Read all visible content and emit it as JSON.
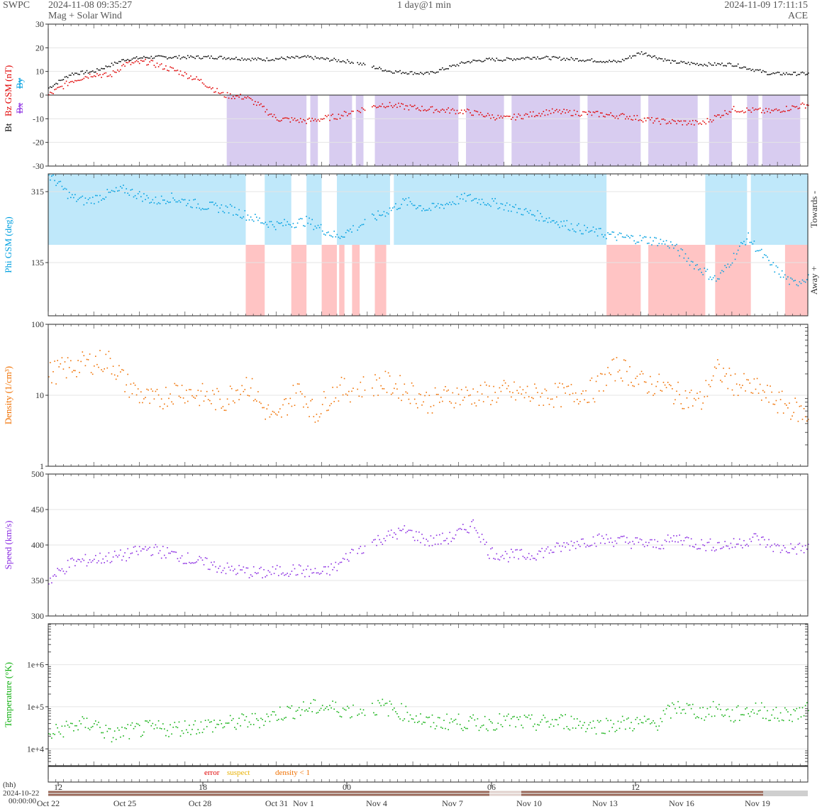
{
  "header": {
    "org": "SWPC",
    "start_time": "2024-11-08 09:35:27",
    "subtitle": "Mag + Solar Wind",
    "window": "1 day@1 min",
    "end_time": "2024-11-09 17:11:15",
    "source": "ACE"
  },
  "flags": {
    "error": "error",
    "suspect": "suspect",
    "density": "density < 1",
    "error_color": "#e00000",
    "suspect_color": "#e8b000",
    "density_color": "#f07000"
  },
  "footer": {
    "hh_label": "(hh)",
    "start_date": "2024-10-22",
    "start_clock": "00:00:00"
  },
  "hour_ticks": [
    "12",
    "18",
    "00",
    "06",
    "12"
  ],
  "date_ticks": [
    "Oct 22",
    "Oct 25",
    "Oct 28",
    "Oct 31",
    "Nov 1",
    "Nov 4",
    "Nov 7",
    "Nov 10",
    "Nov 13",
    "Nov 16",
    "Nov 19"
  ],
  "side_labels": {
    "towards": "Towards -",
    "away": "Away +"
  },
  "colors": {
    "bt": "#000000",
    "bz": "#e00000",
    "bx": "#8a2be2",
    "by": "#00a0e0",
    "neg_fill": "#d8ccf0",
    "towards_fill": "#bfe8fa",
    "away_fill": "#ffc4c4",
    "density": "#f07000",
    "speed": "#8a2be2",
    "temperature": "#10b010"
  },
  "chart_data": [
    {
      "type": "scatter",
      "ylabel_parts": [
        "Bt",
        "Bz GSM (nT)",
        "Bx",
        "By"
      ],
      "ylim": [
        -30,
        30
      ],
      "yticks": [
        "30",
        "20",
        "10",
        "0",
        "-10",
        "-20",
        "-30"
      ],
      "series": [
        {
          "name": "Bt",
          "x": [
            0,
            3,
            6,
            10,
            13,
            17,
            22,
            28,
            34,
            40,
            45,
            50,
            55,
            58,
            60,
            64,
            70,
            75,
            78,
            82,
            86,
            90,
            95,
            100
          ],
          "y": [
            3,
            9,
            10,
            15,
            16,
            16,
            16,
            15,
            16,
            14,
            10,
            9,
            14,
            15,
            15,
            16,
            15,
            14,
            18,
            14,
            13,
            13,
            9,
            9
          ]
        },
        {
          "name": "Bz GSM",
          "x": [
            0,
            3,
            6,
            8,
            10,
            13,
            17,
            20,
            23,
            26,
            28,
            30,
            34,
            38,
            40,
            44,
            50,
            55,
            60,
            66,
            72,
            76,
            80,
            86,
            90,
            95,
            100
          ],
          "y": [
            0,
            6,
            9,
            8,
            13,
            14,
            10,
            6,
            0,
            -1,
            -5,
            -10,
            -11,
            -9,
            -7,
            -4,
            -6,
            -7,
            -10,
            -7,
            -8,
            -9,
            -11,
            -12,
            -6,
            -7,
            -4
          ]
        }
      ]
    },
    {
      "type": "scatter",
      "ylabel": "Phi GSM (deg)",
      "yticks": [
        "315",
        "135"
      ],
      "series": [
        {
          "name": "Phi GSM",
          "x": [
            0,
            1,
            3,
            5,
            8,
            10,
            14,
            16,
            20,
            24,
            28,
            30,
            34,
            38,
            44,
            47,
            50,
            55,
            60,
            65,
            70,
            75,
            80,
            82,
            85,
            88,
            92,
            95,
            98,
            100
          ],
          "y": [
            355,
            340,
            300,
            290,
            310,
            320,
            290,
            300,
            280,
            270,
            240,
            230,
            240,
            200,
            260,
            290,
            270,
            300,
            280,
            250,
            220,
            200,
            190,
            180,
            130,
            90,
            200,
            130,
            80,
            100
          ]
        }
      ]
    },
    {
      "type": "scatter",
      "ylabel": "Density (1/cm³)",
      "yscale": "log",
      "ylim": [
        1,
        100
      ],
      "yticks": [
        "100",
        "10",
        "1"
      ],
      "series": [
        {
          "name": "Density",
          "x": [
            0,
            3,
            6,
            8,
            10,
            12,
            14,
            17,
            20,
            23,
            26,
            28,
            30,
            33,
            35,
            38,
            40,
            44,
            47,
            50,
            53,
            56,
            60,
            64,
            68,
            72,
            75,
            78,
            80,
            83,
            86,
            88,
            90,
            93,
            96,
            100
          ],
          "y": [
            20,
            25,
            30,
            30,
            15,
            10,
            8,
            12,
            10,
            8,
            15,
            7,
            4,
            12,
            5,
            12,
            12,
            15,
            12,
            8,
            10,
            10,
            11,
            10,
            10,
            12,
            25,
            15,
            14,
            10,
            8,
            22,
            15,
            12,
            8,
            5
          ]
        }
      ]
    },
    {
      "type": "scatter",
      "ylabel": "Speed (km/s)",
      "ylim": [
        300,
        500
      ],
      "yticks": [
        "500",
        "450",
        "400",
        "350",
        "300"
      ],
      "series": [
        {
          "name": "Speed",
          "x": [
            0,
            3,
            6,
            10,
            13,
            17,
            20,
            24,
            28,
            32,
            36,
            38,
            40,
            42,
            44,
            47,
            50,
            53,
            56,
            58,
            60,
            63,
            67,
            70,
            73,
            76,
            80,
            83,
            86,
            90,
            93,
            96,
            100
          ],
          "y": [
            350,
            375,
            380,
            385,
            395,
            385,
            375,
            365,
            360,
            365,
            360,
            370,
            390,
            400,
            410,
            420,
            405,
            410,
            430,
            390,
            385,
            385,
            395,
            405,
            408,
            405,
            400,
            410,
            400,
            400,
            410,
            395,
            395
          ]
        }
      ]
    },
    {
      "type": "scatter",
      "ylabel": "Temperature (°K)",
      "yscale": "log",
      "yticks": [
        "1e+6",
        "1e+5",
        "1e+4"
      ],
      "series": [
        {
          "name": "Temperature",
          "x": [
            0,
            3,
            6,
            8,
            10,
            13,
            16,
            20,
            24,
            28,
            32,
            36,
            38,
            40,
            44,
            47,
            50,
            53,
            56,
            60,
            64,
            68,
            72,
            76,
            80,
            83,
            86,
            88,
            90,
            93,
            96,
            100
          ],
          "y": [
            20000,
            35000,
            40000,
            20000,
            25000,
            30000,
            30000,
            35000,
            40000,
            50000,
            80000,
            100000,
            90000,
            80000,
            100000,
            70000,
            40000,
            45000,
            40000,
            45000,
            40000,
            45000,
            35000,
            40000,
            40000,
            100000,
            70000,
            90000,
            60000,
            90000,
            60000,
            80000
          ]
        }
      ]
    }
  ]
}
